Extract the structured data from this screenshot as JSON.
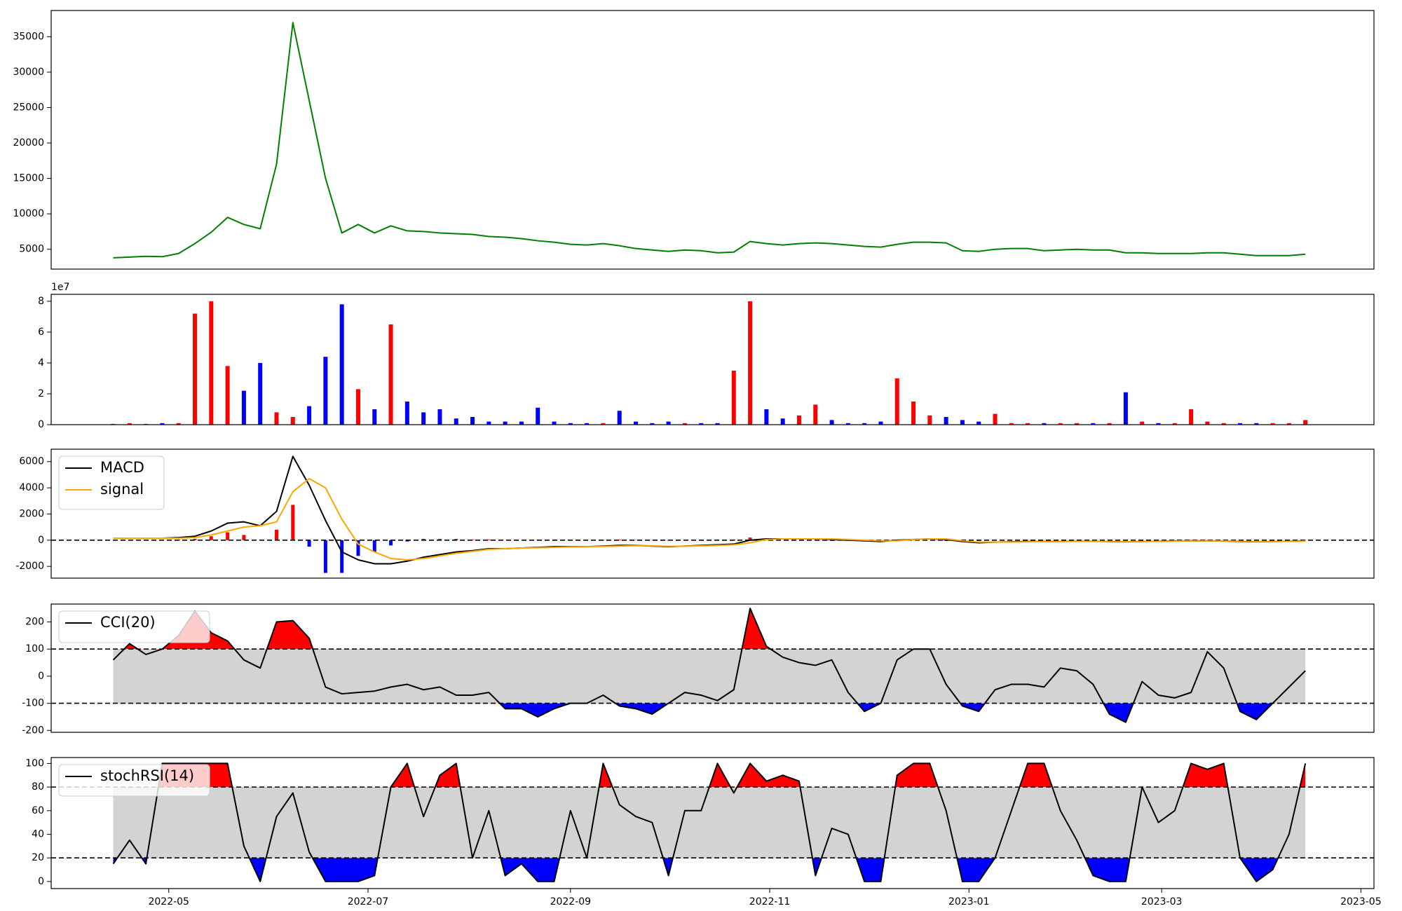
{
  "chart_data": [
    {
      "type": "line",
      "color": "green",
      "values": [
        3800,
        3900,
        4000,
        3950,
        4400,
        5800,
        7400,
        9500,
        8500,
        7900,
        17000,
        37000,
        26000,
        15000,
        7300,
        8500,
        7300,
        8300,
        7600,
        7500,
        7300,
        7200,
        7100,
        6800,
        6700,
        6500,
        6200,
        6000,
        5700,
        5600,
        5800,
        5500,
        5100,
        4900,
        4700,
        4900,
        4800,
        4500,
        4600,
        6100,
        5800,
        5600,
        5800,
        5900,
        5800,
        5600,
        5400,
        5300,
        5700,
        6000,
        6000,
        5900,
        4800,
        4700,
        5000,
        5100,
        5100,
        4800,
        4900,
        5000,
        4900,
        4900,
        4500,
        4500,
        4400,
        4400,
        4400,
        4500,
        4500,
        4300,
        4100,
        4100,
        4100,
        4300
      ],
      "ylim": [
        2200,
        38700
      ],
      "yticks": [
        5000,
        10000,
        15000,
        20000,
        25000,
        30000,
        35000
      ]
    },
    {
      "type": "bar",
      "colors": {
        "up": "red",
        "down": "blue"
      },
      "offset_label": "1e7",
      "values": [
        0.05,
        0.1,
        0.05,
        0.1,
        0.1,
        7.2,
        8.0,
        3.8,
        2.2,
        4.0,
        0.8,
        0.5,
        1.2,
        4.4,
        7.8,
        2.3,
        1.0,
        6.5,
        1.5,
        0.8,
        1.0,
        0.4,
        0.5,
        0.2,
        0.2,
        0.2,
        1.1,
        0.2,
        0.1,
        0.1,
        0.1,
        0.9,
        0.2,
        0.1,
        0.2,
        0.1,
        0.1,
        0.1,
        3.5,
        8.0,
        1.0,
        0.4,
        0.6,
        1.3,
        0.3,
        0.1,
        0.1,
        0.2,
        3.0,
        1.5,
        0.6,
        0.5,
        0.3,
        0.2,
        0.7,
        0.1,
        0.1,
        0.1,
        0.1,
        0.1,
        0.1,
        0.1,
        2.1,
        0.2,
        0.1,
        0.1,
        1.0,
        0.2,
        0.1,
        0.1,
        0.1,
        0.1,
        0.1,
        0.3
      ],
      "ylim": [
        0,
        8.45
      ],
      "yticks": [
        0,
        2,
        4,
        6,
        8
      ]
    },
    {
      "type": "macd",
      "legend": "upper left",
      "hlines": [
        0
      ],
      "histogram_colors": {
        "positive": "red",
        "negative": "blue"
      },
      "histogram": [
        0,
        0,
        0,
        0,
        50,
        100,
        300,
        600,
        400,
        0,
        800,
        2700,
        -500,
        -2500,
        -2500,
        -1200,
        -900,
        -400,
        -100,
        100,
        100,
        100,
        50,
        50,
        0,
        0,
        30,
        50,
        20,
        0,
        30,
        50,
        20,
        -20,
        -30,
        10,
        30,
        50,
        50,
        200,
        50,
        0,
        0,
        0,
        -50,
        -50,
        -50,
        -50,
        50,
        0,
        0,
        -50,
        -50,
        -50,
        0,
        20,
        20,
        10,
        0,
        10,
        5,
        -10,
        -10,
        -5,
        10,
        10,
        10,
        0,
        -5,
        -20,
        -10,
        5,
        10,
        10
      ],
      "series": [
        {
          "name": "MACD",
          "color": "black",
          "values": [
            150,
            150,
            150,
            150,
            200,
            300,
            700,
            1300,
            1400,
            1100,
            2200,
            6400,
            4200,
            1500,
            -900,
            -1500,
            -1800,
            -1800,
            -1600,
            -1300,
            -1100,
            -900,
            -800,
            -650,
            -650,
            -600,
            -550,
            -500,
            -500,
            -500,
            -450,
            -400,
            -400,
            -450,
            -500,
            -450,
            -400,
            -350,
            -300,
            0,
            100,
            100,
            100,
            100,
            50,
            0,
            -50,
            -100,
            0,
            50,
            100,
            50,
            -100,
            -200,
            -150,
            -120,
            -100,
            -100,
            -100,
            -80,
            -80,
            -100,
            -120,
            -100,
            -80,
            -60,
            -40,
            -50,
            -60,
            -100,
            -120,
            -100,
            -80,
            -60
          ]
        },
        {
          "name": "signal",
          "color": "orange",
          "values": [
            150,
            150,
            150,
            150,
            150,
            200,
            400,
            700,
            1000,
            1100,
            1400,
            3700,
            4700,
            4000,
            1600,
            -300,
            -900,
            -1400,
            -1500,
            -1400,
            -1200,
            -1000,
            -850,
            -700,
            -650,
            -600,
            -580,
            -550,
            -520,
            -500,
            -480,
            -450,
            -420,
            -430,
            -470,
            -460,
            -430,
            -400,
            -350,
            -200,
            50,
            100,
            100,
            100,
            100,
            50,
            0,
            -50,
            -50,
            50,
            100,
            100,
            -50,
            -150,
            -150,
            -140,
            -120,
            -110,
            -100,
            -90,
            -85,
            -90,
            -110,
            -105,
            -90,
            -70,
            -50,
            -50,
            -55,
            -80,
            -110,
            -105,
            -90,
            -70
          ]
        }
      ],
      "ylim": [
        -2900,
        6950
      ],
      "yticks": [
        -2000,
        0,
        2000,
        4000,
        6000
      ]
    },
    {
      "type": "oscillator",
      "legend": "upper left",
      "thresholds": [
        -100,
        100
      ],
      "fill_colors": {
        "above": "red",
        "below": "blue",
        "band": "lightgray"
      },
      "series": [
        {
          "name": "CCI(20)",
          "color": "black",
          "values": [
            60,
            120,
            80,
            100,
            150,
            240,
            160,
            130,
            60,
            30,
            200,
            205,
            140,
            -40,
            -65,
            -60,
            -55,
            -40,
            -30,
            -50,
            -40,
            -70,
            -70,
            -60,
            -120,
            -120,
            -150,
            -120,
            -100,
            -100,
            -70,
            -110,
            -120,
            -140,
            -100,
            -60,
            -70,
            -90,
            -50,
            250,
            110,
            70,
            50,
            40,
            60,
            -60,
            -130,
            -100,
            60,
            100,
            100,
            -30,
            -110,
            -130,
            -50,
            -30,
            -30,
            -40,
            30,
            20,
            -30,
            -140,
            -170,
            -20,
            -70,
            -80,
            -60,
            90,
            30,
            -130,
            -160,
            -100,
            -40,
            20
          ]
        }
      ],
      "ylim": [
        -207,
        266
      ],
      "yticks": [
        -200,
        -100,
        0,
        100,
        200
      ]
    },
    {
      "type": "oscillator",
      "legend": "upper left",
      "thresholds": [
        20,
        80
      ],
      "fill_colors": {
        "above": "red",
        "below": "blue",
        "band": "lightgray"
      },
      "series": [
        {
          "name": "stochRSI(14)",
          "color": "black",
          "values": [
            15,
            35,
            15,
            100,
            100,
            100,
            100,
            100,
            30,
            0,
            55,
            75,
            25,
            0,
            0,
            0,
            5,
            80,
            100,
            55,
            90,
            100,
            20,
            60,
            5,
            15,
            0,
            0,
            60,
            20,
            100,
            65,
            55,
            50,
            5,
            60,
            60,
            100,
            75,
            100,
            85,
            90,
            85,
            5,
            45,
            40,
            0,
            0,
            90,
            100,
            100,
            60,
            0,
            0,
            20,
            60,
            100,
            100,
            60,
            35,
            5,
            0,
            0,
            80,
            50,
            60,
            100,
            95,
            100,
            20,
            0,
            10,
            40,
            100
          ]
        }
      ],
      "ylim": [
        -6,
        105
      ],
      "yticks": [
        0,
        20,
        40,
        60,
        80,
        100
      ],
      "x": [
        13,
        18,
        23,
        28,
        33,
        38,
        43,
        48,
        53,
        58,
        63,
        68,
        73,
        78,
        83,
        88,
        93,
        98,
        103,
        108,
        113,
        118,
        123,
        128,
        133,
        138,
        143,
        148,
        153,
        158,
        163,
        168,
        173,
        178,
        183,
        188,
        193,
        198,
        203,
        208,
        213,
        218,
        223,
        228,
        233,
        238,
        243,
        248,
        253,
        258,
        263,
        268,
        273,
        278,
        283,
        288,
        293,
        298,
        303,
        308,
        313,
        318,
        323,
        328,
        333,
        338,
        343,
        348,
        353,
        358,
        363,
        368,
        373,
        378
      ],
      "xlim": [
        -6,
        399
      ],
      "xticks": [
        {
          "value": 30,
          "label": "2022-05"
        },
        {
          "value": 91,
          "label": "2022-07"
        },
        {
          "value": 153,
          "label": "2022-09"
        },
        {
          "value": 214,
          "label": "2022-11"
        },
        {
          "value": 275,
          "label": "2023-01"
        },
        {
          "value": 334,
          "label": "2023-03"
        },
        {
          "value": 395,
          "label": "2023-05"
        }
      ]
    }
  ]
}
